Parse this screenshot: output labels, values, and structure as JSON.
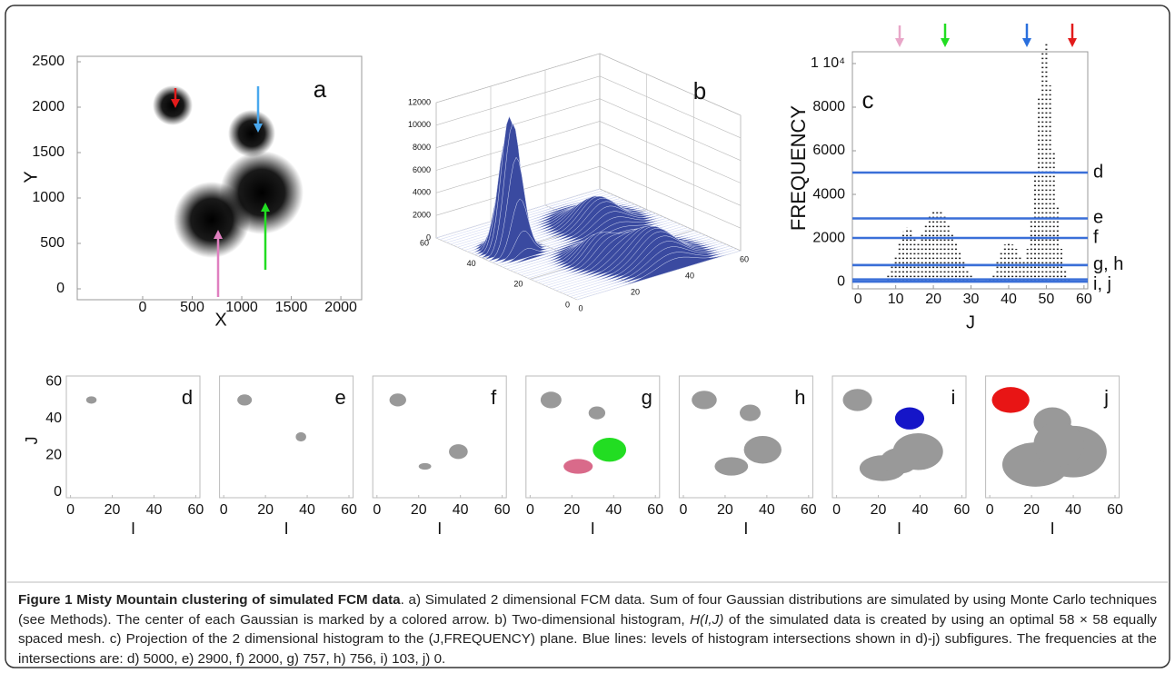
{
  "panel_a": {
    "label": "a",
    "xlabel": "X",
    "ylabel": "Y",
    "xlim": [
      -660,
      2210
    ],
    "ylim": [
      -120,
      2560
    ],
    "xticks": [
      0,
      500,
      1000,
      1500,
      2000
    ],
    "yticks": [
      0,
      500,
      1000,
      1500,
      2000,
      2500
    ]
  },
  "panel_b": {
    "label": "b",
    "ilim": [
      0,
      60
    ],
    "jlim": [
      0,
      60
    ],
    "zlim": [
      0,
      12000
    ],
    "iticks": [
      0,
      20,
      40,
      60
    ],
    "jticks": [
      0,
      20,
      40,
      60
    ],
    "zticks": [
      0,
      2000,
      4000,
      6000,
      8000,
      10000,
      12000
    ]
  },
  "panel_c": {
    "label": "c",
    "xlabel": "J",
    "ylabel": "FREQUENCY",
    "xlim": [
      -1.5,
      61
    ],
    "ylim": [
      -330,
      10540
    ],
    "xticks": [
      0,
      10,
      20,
      30,
      40,
      50,
      60
    ],
    "yticks": [
      0,
      2000,
      4000,
      6000,
      8000,
      {
        "value": 10000,
        "label": "1 10⁴"
      }
    ],
    "J": [
      8,
      9,
      10,
      11,
      12,
      13,
      14,
      15,
      16,
      17,
      18,
      19,
      20,
      21,
      22,
      23,
      24,
      25,
      26,
      27,
      28,
      29,
      30,
      31,
      32,
      33,
      34,
      35,
      36,
      37,
      38,
      39,
      40,
      41,
      42,
      43,
      44,
      45,
      46,
      47,
      48,
      49,
      50,
      51,
      52,
      53,
      54,
      55,
      56
    ],
    "column_peaks": [
      300,
      800,
      1200,
      1800,
      2300,
      2500,
      2400,
      2000,
      1800,
      2200,
      2600,
      3000,
      3200,
      3300,
      3200,
      3000,
      2600,
      2200,
      1800,
      1400,
      1000,
      600,
      300,
      100,
      50,
      30,
      50,
      100,
      400,
      900,
      1400,
      1700,
      1800,
      1700,
      1500,
      1200,
      900,
      1500,
      2800,
      5000,
      8500,
      10500,
      11000,
      9000,
      6000,
      3500,
      1500,
      600,
      200
    ],
    "levels": [
      {
        "label": "d",
        "values": [
          5000
        ]
      },
      {
        "label": "e",
        "values": [
          2900
        ]
      },
      {
        "label": "f",
        "values": [
          2000
        ]
      },
      {
        "label": "g, h",
        "values": [
          757,
          756
        ]
      },
      {
        "label": "i, j",
        "values": [
          103,
          0
        ]
      }
    ]
  },
  "subpanels": {
    "labels": [
      "d",
      "e",
      "f",
      "g",
      "h",
      "i",
      "j"
    ],
    "xlabel": "I",
    "ylabel": "J",
    "xlim": [
      -2,
      62
    ],
    "ylim": [
      -3,
      63
    ],
    "xticks": [
      0,
      20,
      40,
      60
    ],
    "yticks": [
      0,
      20,
      40,
      60
    ]
  },
  "caption": {
    "title": "Figure 1 Misty Mountain clustering of simulated FCM data",
    "text_1": ". a) Simulated 2 dimensional FCM data. Sum of four Gaussian distributions are simulated by using Monte Carlo techniques (see Methods). The center of each Gaussian is marked by a colored arrow. b) Two-dimensional histogram, ",
    "italic": "H(I,J)",
    "text_2": " of the simulated data is created by using an optimal 58 × 58 equally spaced mesh. c) Projection of the 2 dimensional histogram to the (J,FREQUENCY) plane. Blue lines: levels of histogram intersections shown in d)-j) subfigures. The frequencies at the intersections are: d) 5000, e) 2900, f) 2000, g) 757, h) 756, i) 103, j) 0."
  }
}
